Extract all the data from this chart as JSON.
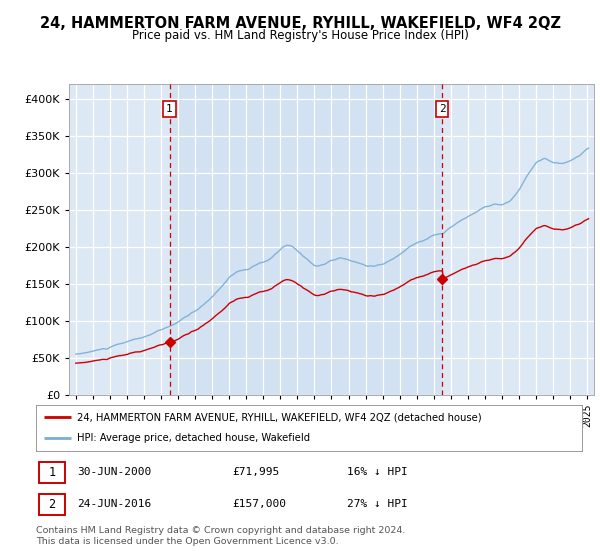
{
  "title": "24, HAMMERTON FARM AVENUE, RYHILL, WAKEFIELD, WF4 2QZ",
  "subtitle": "Price paid vs. HM Land Registry's House Price Index (HPI)",
  "legend_line1": "24, HAMMERTON FARM AVENUE, RYHILL, WAKEFIELD, WF4 2QZ (detached house)",
  "legend_line2": "HPI: Average price, detached house, Wakefield",
  "annotation1_date": "30-JUN-2000",
  "annotation1_price": "£71,995",
  "annotation1_hpi": "16% ↓ HPI",
  "annotation2_date": "24-JUN-2016",
  "annotation2_price": "£157,000",
  "annotation2_hpi": "27% ↓ HPI",
  "footer": "Contains HM Land Registry data © Crown copyright and database right 2024.\nThis data is licensed under the Open Government Licence v3.0.",
  "sale1_year": 2000.5,
  "sale1_price": 71995,
  "sale2_year": 2016.5,
  "sale2_price": 157000,
  "hpi_color": "#7aadd4",
  "price_color": "#cc0000",
  "vline_color": "#cc0000",
  "bg_fill_color": "#dde8f5",
  "background_color": "#ffffff",
  "grid_color": "#cccccc",
  "ylim_min": 0,
  "ylim_max": 420000,
  "xlim_min": 1994.6,
  "xlim_max": 2025.4
}
